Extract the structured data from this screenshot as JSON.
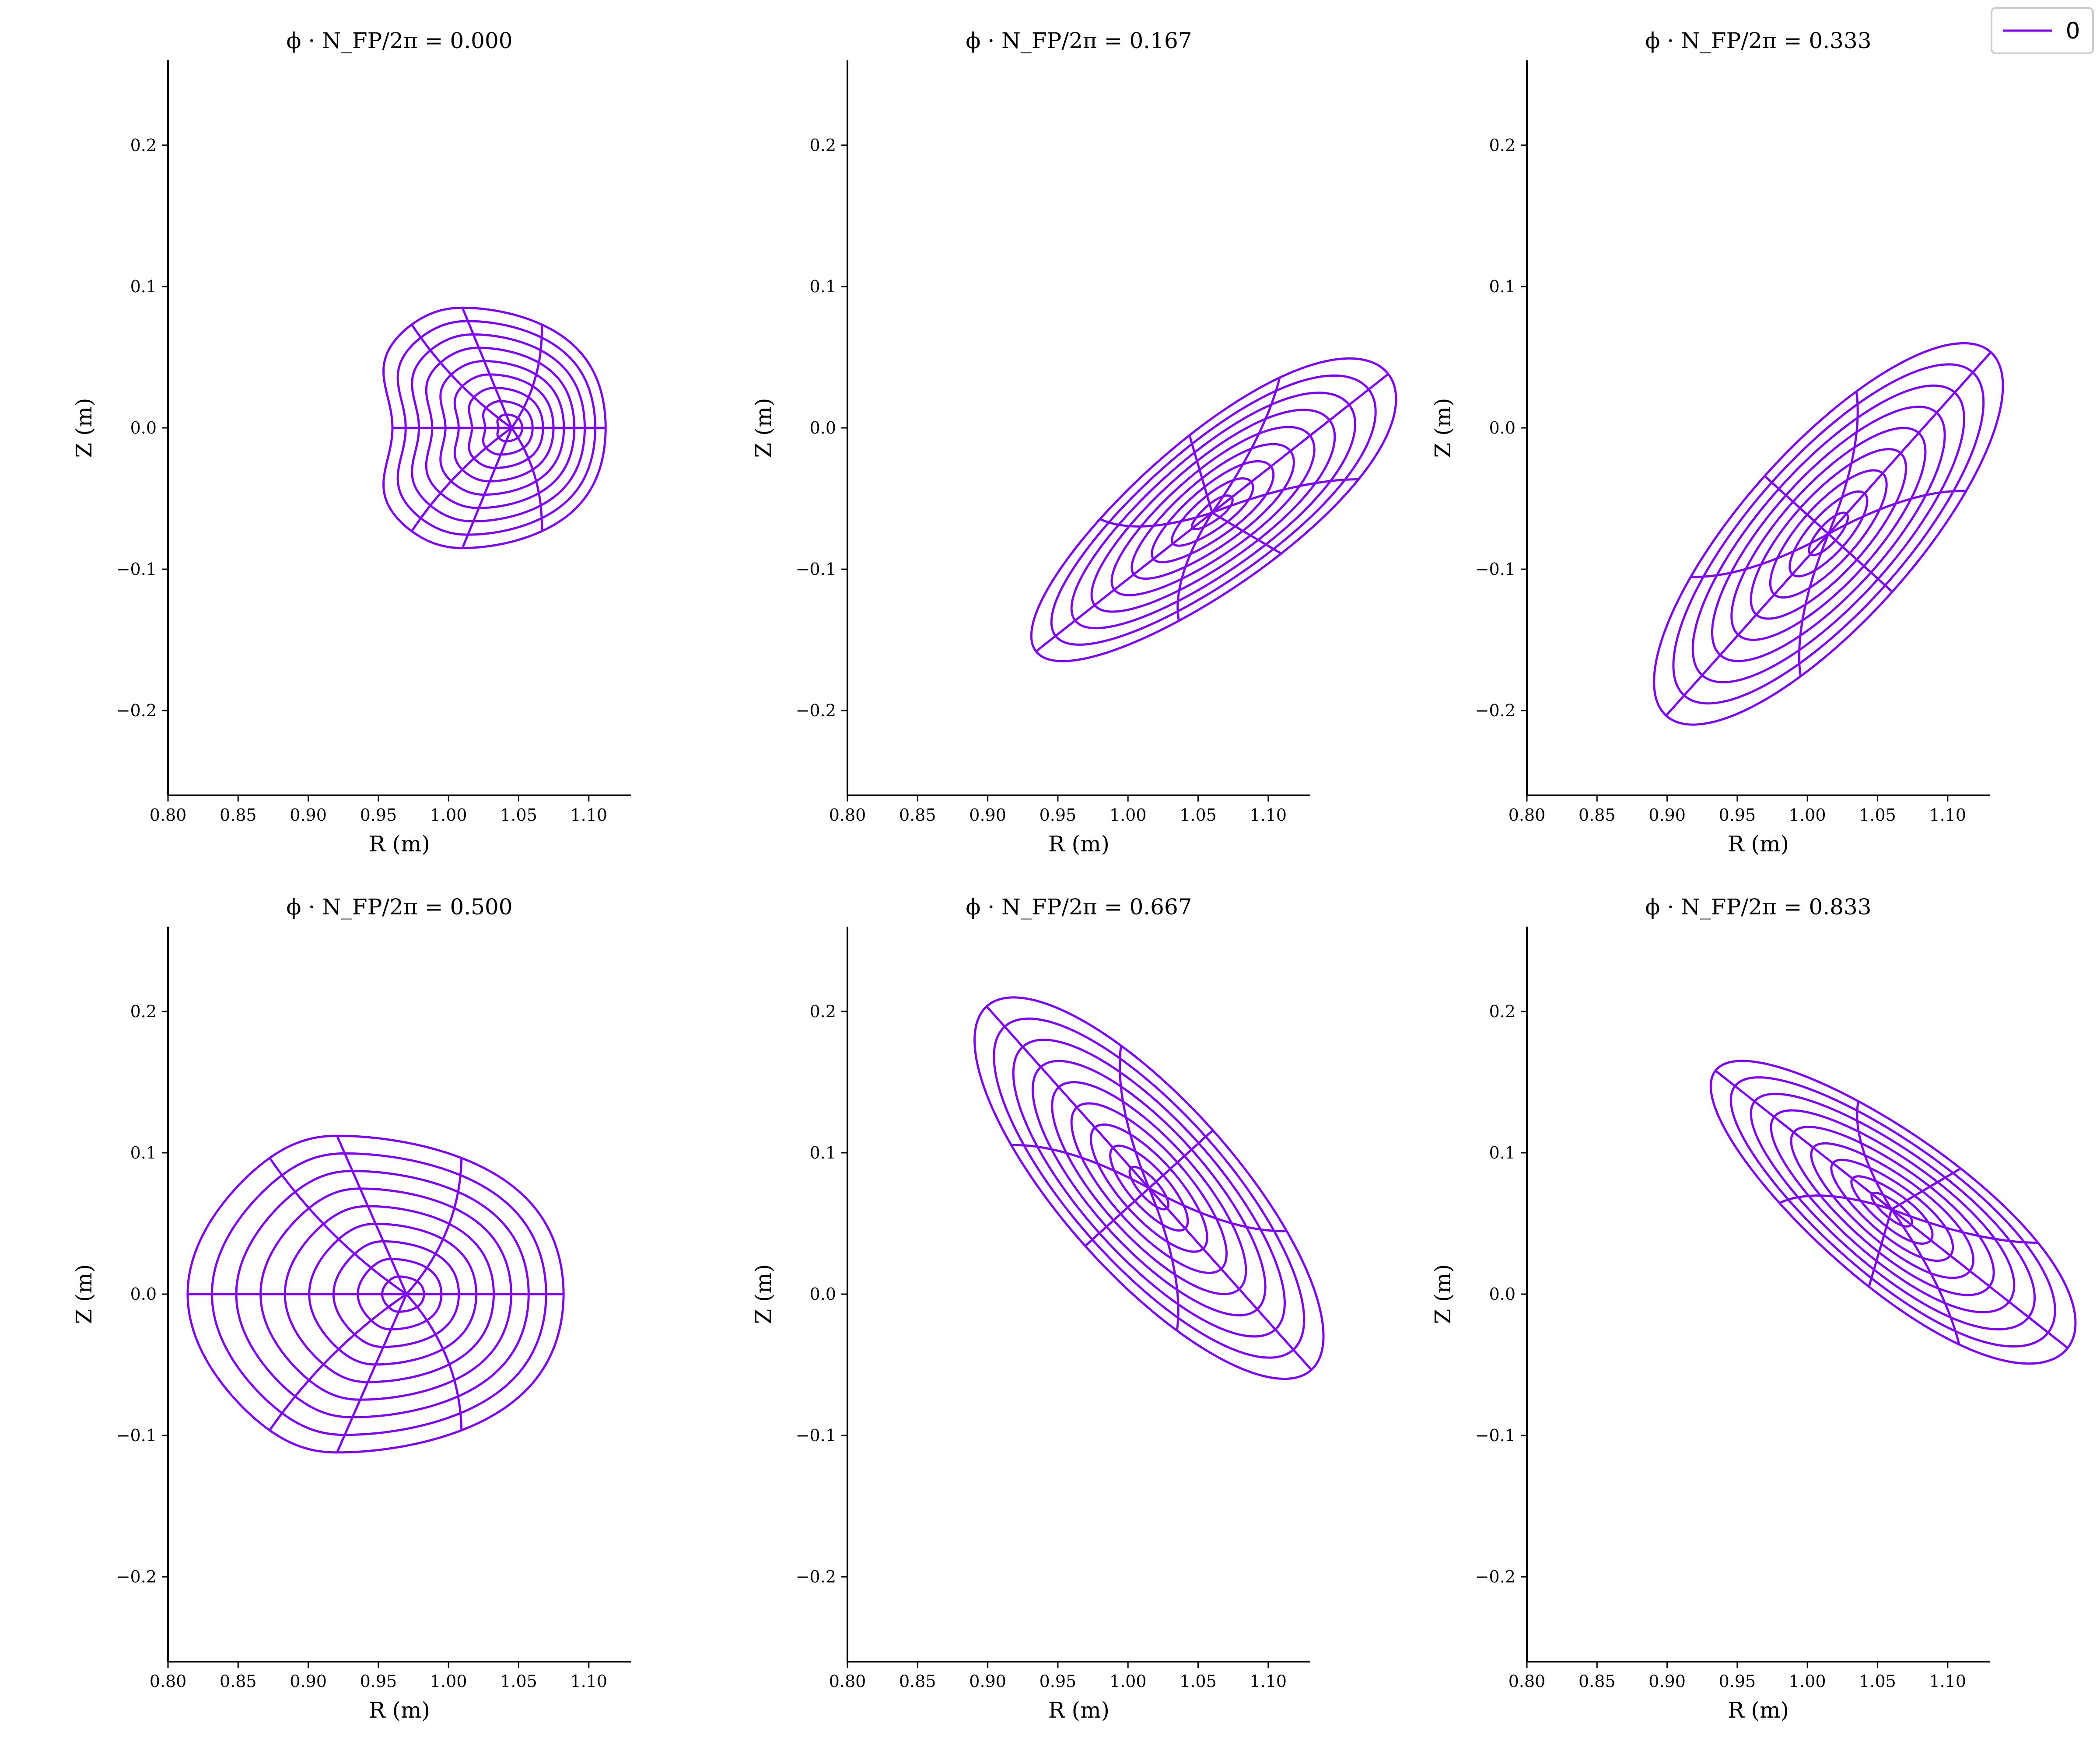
{
  "legend": {
    "label": "0",
    "color": "#8000FF"
  },
  "colors": {
    "series": "#8000FF",
    "axis": "#000000",
    "background": "#FFFFFF"
  },
  "chart_data": [
    {
      "type": "line",
      "title": "ϕ · N_FP/2π = 0.000",
      "xlabel": "R (m)",
      "ylabel": "Z (m)",
      "xlim": [
        0.8,
        1.13
      ],
      "ylim": [
        -0.26,
        0.26
      ],
      "xticks": [
        "0.80",
        "0.85",
        "0.90",
        "0.95",
        "1.00",
        "1.05",
        "1.10"
      ],
      "yticks": [
        "0.2",
        "0.1",
        "0.0",
        "−0.1",
        "−0.2"
      ],
      "grid": false,
      "surface": {
        "axis_R": 1.045,
        "axis_Z": 0.0,
        "rmin": 0.93,
        "rmax": 1.112,
        "zup": 0.085,
        "zdn": 0.085,
        "peak_R": 1.006,
        "skew": 0.0,
        "dent": 0.03,
        "tilt_deg": 0,
        "bend": 0.0,
        "rings": 9
      },
      "series": [
        {
          "name": "0",
          "values": "flux surfaces"
        }
      ]
    },
    {
      "type": "line",
      "title": "ϕ · N_FP/2π = 0.167",
      "xlabel": "R (m)",
      "ylabel": "Z (m)",
      "xlim": [
        0.8,
        1.13
      ],
      "ylim": [
        -0.26,
        0.26
      ],
      "xticks": [
        "0.80",
        "0.85",
        "0.90",
        "0.95",
        "1.00",
        "1.05",
        "1.10"
      ],
      "yticks": [
        "0.2",
        "0.1",
        "0.0",
        "−0.1",
        "−0.2"
      ],
      "grid": false,
      "surface": {
        "axis_R": 1.06,
        "axis_Z": -0.06,
        "rmin": 0.935,
        "rmax": 1.112,
        "zup": 0.075,
        "zdn": -0.182,
        "peak_R": 1.068,
        "skew": 0.0,
        "dent": 0.0,
        "tilt_deg": 52,
        "bend": 0.35,
        "rings": 9
      },
      "series": [
        {
          "name": "0",
          "values": "flux surfaces"
        }
      ]
    },
    {
      "type": "line",
      "title": "ϕ · N_FP/2π = 0.333",
      "xlabel": "R (m)",
      "ylabel": "Z (m)",
      "xlim": [
        0.8,
        1.13
      ],
      "ylim": [
        -0.26,
        0.26
      ],
      "xticks": [
        "0.80",
        "0.85",
        "0.90",
        "0.95",
        "1.00",
        "1.05",
        "1.10"
      ],
      "yticks": [
        "0.2",
        "0.1",
        "0.0",
        "−0.1",
        "−0.2"
      ],
      "grid": false,
      "surface": {
        "axis_R": 1.015,
        "axis_Z": -0.075,
        "rmin": 0.898,
        "rmax": 1.102,
        "zup": 0.043,
        "zdn": -0.236,
        "peak_R": 1.09,
        "skew": 0.0,
        "dent": 0.0,
        "tilt_deg": 42,
        "bend": 0.0,
        "rings": 9
      },
      "series": [
        {
          "name": "0",
          "values": "flux surfaces"
        }
      ]
    },
    {
      "type": "line",
      "title": "ϕ · N_FP/2π = 0.500",
      "xlabel": "R (m)",
      "ylabel": "Z (m)",
      "xlim": [
        0.8,
        1.13
      ],
      "ylim": [
        -0.26,
        0.26
      ],
      "xticks": [
        "0.80",
        "0.85",
        "0.90",
        "0.95",
        "1.00",
        "1.05",
        "1.10"
      ],
      "yticks": [
        "0.2",
        "0.1",
        "0.0",
        "−0.1",
        "−0.2"
      ],
      "grid": false,
      "surface": {
        "axis_R": 0.97,
        "axis_Z": 0.0,
        "rmin": 0.814,
        "rmax": 1.082,
        "zup": 0.112,
        "zdn": 0.112,
        "peak_R": 0.915,
        "skew": 0.0,
        "dent": 0.0,
        "tilt_deg": 0,
        "bend": 0.0,
        "rings": 9
      },
      "series": [
        {
          "name": "0",
          "values": "flux surfaces"
        }
      ]
    },
    {
      "type": "line",
      "title": "ϕ · N_FP/2π = 0.667",
      "xlabel": "R (m)",
      "ylabel": "Z (m)",
      "xlim": [
        0.8,
        1.13
      ],
      "ylim": [
        -0.26,
        0.26
      ],
      "xticks": [
        "0.80",
        "0.85",
        "0.90",
        "0.95",
        "1.00",
        "1.05",
        "1.10"
      ],
      "yticks": [
        "0.2",
        "0.1",
        "0.0",
        "−0.1",
        "−0.2"
      ],
      "grid": false,
      "surface": {
        "axis_R": 1.015,
        "axis_Z": 0.075,
        "rmin": 0.898,
        "rmax": 1.102,
        "zup": 0.236,
        "zdn": -0.043,
        "peak_R": 0.93,
        "skew": 0.0,
        "dent": 0.0,
        "tilt_deg": -42,
        "bend": 0.0,
        "rings": 9
      },
      "series": [
        {
          "name": "0",
          "values": "flux surfaces"
        }
      ]
    },
    {
      "type": "line",
      "title": "ϕ · N_FP/2π = 0.833",
      "xlabel": "R (m)",
      "ylabel": "Z (m)",
      "xlim": [
        0.8,
        1.13
      ],
      "ylim": [
        -0.26,
        0.26
      ],
      "xticks": [
        "0.80",
        "0.85",
        "0.90",
        "0.95",
        "1.00",
        "1.05",
        "1.10"
      ],
      "yticks": [
        "0.2",
        "0.1",
        "0.0",
        "−0.1",
        "−0.2"
      ],
      "grid": false,
      "surface": {
        "axis_R": 1.06,
        "axis_Z": 0.06,
        "rmin": 0.935,
        "rmax": 1.112,
        "zup": 0.182,
        "zdn": -0.075,
        "peak_R": 0.975,
        "skew": 0.0,
        "dent": 0.0,
        "tilt_deg": -52,
        "bend": -0.35,
        "rings": 9
      },
      "series": [
        {
          "name": "0",
          "values": "flux surfaces"
        }
      ]
    }
  ]
}
